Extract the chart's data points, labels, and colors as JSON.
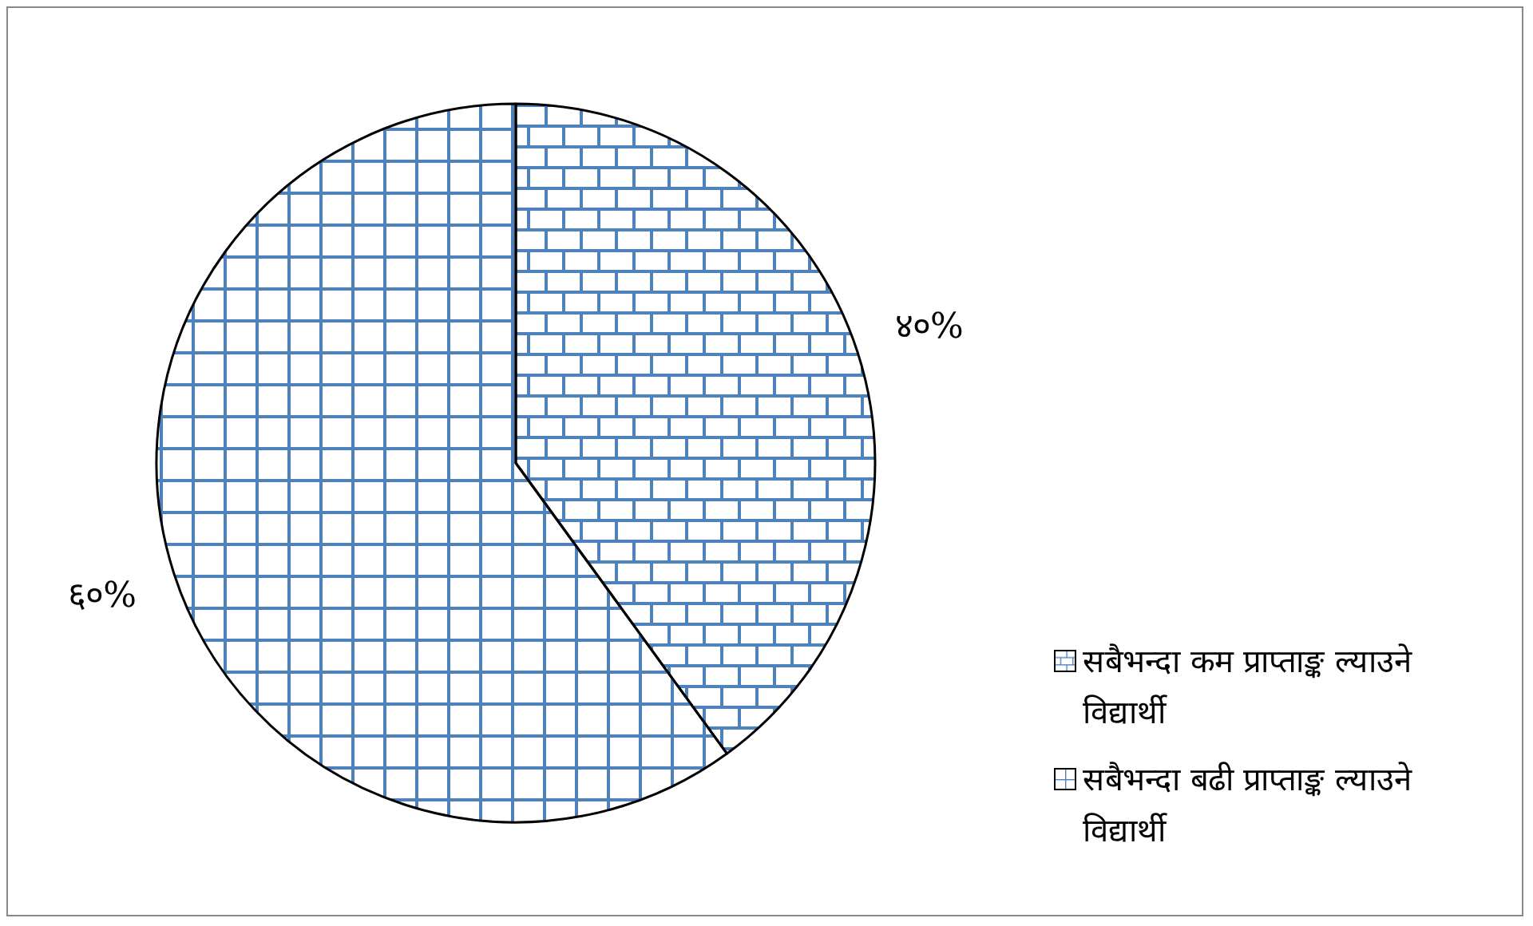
{
  "chart_data": {
    "type": "pie",
    "categories": [
      "सबैभन्दा कम प्राप्ताङ्क ल्याउने विद्यार्थी",
      "सबैभन्दा बढी प्राप्ताङ्क ल्याउने विद्यार्थी"
    ],
    "values": [
      40,
      60
    ],
    "colors": [
      "#4f81bd",
      "#4f81bd"
    ],
    "value_labels": [
      "४०%",
      "६०%"
    ],
    "legend": "right"
  }
}
